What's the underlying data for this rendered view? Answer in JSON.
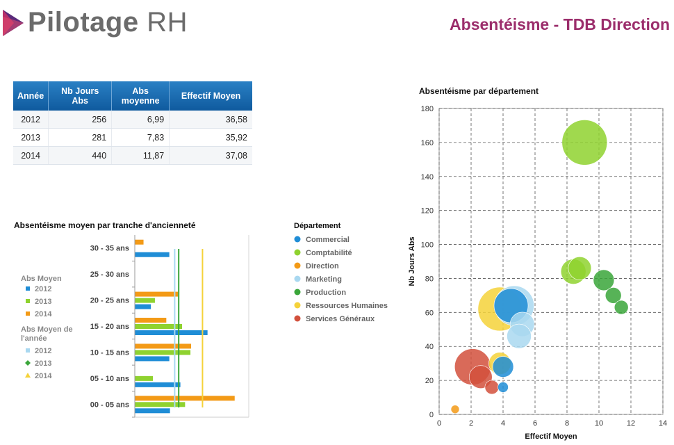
{
  "header": {
    "logo_bold": "Pilotage",
    "logo_light": " RH",
    "title": "Absentéisme - TDB Direction"
  },
  "colors": {
    "brand": "#9b2d6b",
    "s2012": "#1f8dd6",
    "s2013": "#8fd22f",
    "s2014": "#f39a16",
    "avg2012": "#a9d8f0",
    "avg2013": "#3aa63a",
    "avg2014": "#f5d23a"
  },
  "table": {
    "headers": [
      "Année",
      "Nb Jours Abs",
      "Abs moyenne",
      "Effectif Moyen"
    ],
    "rows": [
      [
        "2012",
        "256",
        "6,99",
        "36,58"
      ],
      [
        "2013",
        "281",
        "7,83",
        "35,92"
      ],
      [
        "2014",
        "440",
        "11,87",
        "37,08"
      ]
    ]
  },
  "chart_data": [
    {
      "type": "bar",
      "orientation": "horizontal",
      "title": "Absentéisme moyen par tranche d'ancienneté",
      "categories": [
        "30 - 35 ans",
        "25 - 30 ans",
        "20 - 25 ans",
        "15 - 20 ans",
        "10 - 15 ans",
        "05 - 10 ans",
        "00 - 05 ans"
      ],
      "legend_bars_title": "Abs Moyen",
      "legend_lines_title": "Abs Moyen de l'année",
      "series": [
        {
          "name": "2012",
          "color": "#1f8dd6",
          "values": [
            10.3,
            0,
            4.8,
            21.7,
            10.3,
            13.6,
            10.5
          ]
        },
        {
          "name": "2013",
          "color": "#8fd22f",
          "values": [
            0,
            0,
            6.0,
            14.1,
            16.6,
            5.4,
            15.0
          ]
        },
        {
          "name": "2014",
          "color": "#f39a16",
          "values": [
            2.6,
            0,
            12.9,
            9.4,
            16.8,
            0,
            29.8
          ]
        }
      ],
      "reference_lines": [
        {
          "name": "2012",
          "color": "#a9d8f0",
          "value": 11.9,
          "marker": "square"
        },
        {
          "name": "2013",
          "color": "#3aa63a",
          "value": 13.1,
          "marker": "diamond"
        },
        {
          "name": "2014",
          "color": "#f5d23a",
          "value": 20.2,
          "marker": "triangle"
        }
      ],
      "xlim": [
        0,
        34
      ]
    },
    {
      "type": "scatter",
      "title": "Absentéisme par département",
      "xlabel": "Effectif Moyen",
      "ylabel": "Nb Jours Abs",
      "xlim": [
        0,
        14
      ],
      "ylim": [
        0,
        180
      ],
      "xticks": [
        0,
        2,
        4,
        6,
        8,
        10,
        12,
        14
      ],
      "yticks": [
        0,
        20,
        40,
        60,
        80,
        100,
        120,
        140,
        160,
        180
      ],
      "legend_title": "Département",
      "series": [
        {
          "name": "Commercial",
          "color": "#1f8dd6",
          "points": [
            {
              "x": 4.5,
              "y": 64,
              "size": 49
            },
            {
              "x": 4.0,
              "y": 28,
              "size": 30
            },
            {
              "x": 4.0,
              "y": 16,
              "size": 15
            }
          ]
        },
        {
          "name": "Comptabilité",
          "color": "#8fd22f",
          "points": [
            {
              "x": 9.1,
              "y": 160,
              "size": 65
            },
            {
              "x": 8.8,
              "y": 86,
              "size": 33
            },
            {
              "x": 8.4,
              "y": 84,
              "size": 36
            }
          ]
        },
        {
          "name": "Direction",
          "color": "#f39a16",
          "points": [
            {
              "x": 1.0,
              "y": 3,
              "size": 12
            }
          ]
        },
        {
          "name": "Marketing",
          "color": "#a9d8f0",
          "points": [
            {
              "x": 4.7,
              "y": 64,
              "size": 57
            },
            {
              "x": 5.2,
              "y": 53,
              "size": 35
            },
            {
              "x": 5.0,
              "y": 46,
              "size": 35
            }
          ]
        },
        {
          "name": "Production",
          "color": "#3aa63a",
          "points": [
            {
              "x": 10.3,
              "y": 79,
              "size": 30
            },
            {
              "x": 10.9,
              "y": 70,
              "size": 23
            },
            {
              "x": 11.4,
              "y": 63,
              "size": 20
            }
          ]
        },
        {
          "name": "Ressources Humaines",
          "color": "#f5d23a",
          "points": [
            {
              "x": 3.8,
              "y": 62,
              "size": 63
            },
            {
              "x": 3.8,
              "y": 30,
              "size": 32
            }
          ]
        },
        {
          "name": "Services Généraux",
          "color": "#d2503c",
          "points": [
            {
              "x": 2.1,
              "y": 28,
              "size": 52
            },
            {
              "x": 2.6,
              "y": 22,
              "size": 33
            },
            {
              "x": 3.3,
              "y": 16,
              "size": 20
            }
          ]
        }
      ]
    }
  ]
}
